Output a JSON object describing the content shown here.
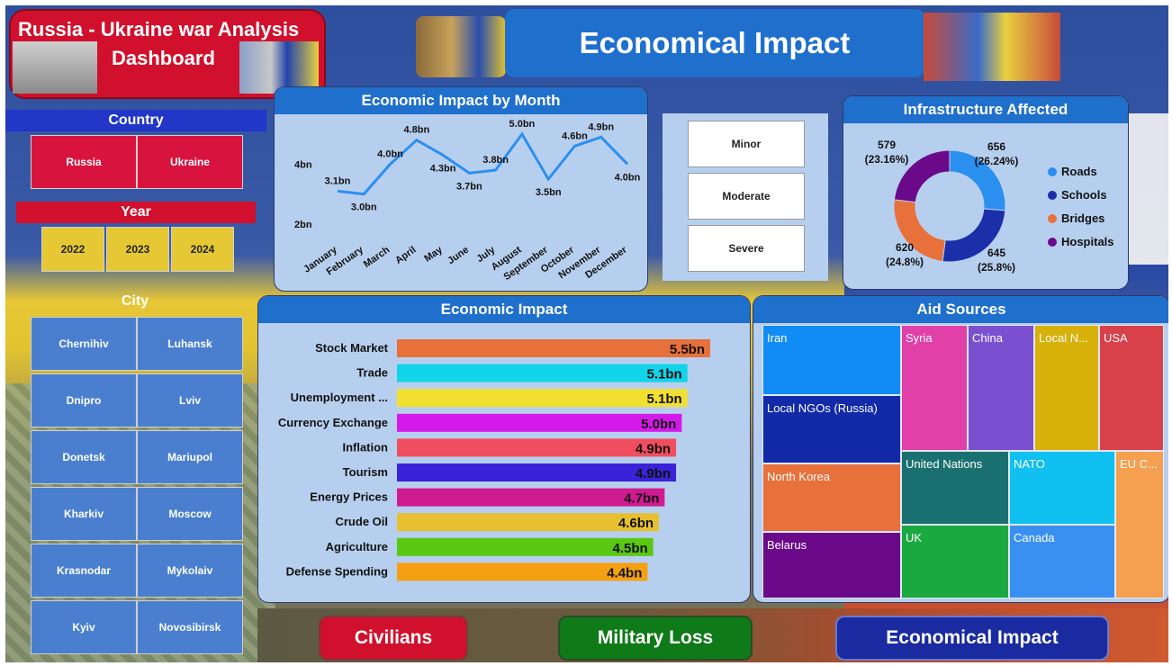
{
  "header": {
    "title_line1": "Russia - Ukraine war Analysis",
    "title_line2": "Dashboard",
    "page_title": "Economical Impact"
  },
  "slicers": {
    "country_title": "Country",
    "countries": [
      "Russia",
      "Ukraine"
    ],
    "year_title": "Year",
    "years": [
      "2022",
      "2023",
      "2024"
    ],
    "city_title": "City",
    "cities": [
      [
        "Chernihiv",
        "Luhansk"
      ],
      [
        "Dnipro",
        "Lviv"
      ],
      [
        "Donetsk",
        "Mariupol"
      ],
      [
        "Kharkiv",
        "Moscow"
      ],
      [
        "Krasnodar",
        "Mykolaiv"
      ],
      [
        "Kyiv",
        "Novosibirsk"
      ]
    ]
  },
  "severity": {
    "options": [
      "Minor",
      "Moderate",
      "Severe"
    ]
  },
  "navigation": {
    "civilians": "Civilians",
    "military": "Military Loss",
    "economical": "Economical Impact"
  },
  "colors": {
    "accent_blue": "#1f6fcc",
    "red": "#d0102c",
    "yellow": "#e6c835",
    "line": "#2b8ff0"
  },
  "chart_data": [
    {
      "type": "line",
      "title": "Economic Impact by Month",
      "categories": [
        "January",
        "February",
        "March",
        "April",
        "May",
        "June",
        "July",
        "August",
        "September",
        "October",
        "November",
        "December"
      ],
      "values": [
        3.1,
        3.0,
        4.0,
        4.8,
        4.3,
        3.7,
        3.8,
        5.0,
        3.5,
        4.6,
        4.9,
        4.0
      ],
      "data_labels": [
        "3.1bn",
        "3.0bn",
        "4.0bn",
        "4.8bn",
        "4.3bn",
        "3.7bn",
        "3.8bn",
        "5.0bn",
        "3.5bn",
        "4.6bn",
        "4.9bn",
        "4.0bn"
      ],
      "y_ticks": [
        "2bn",
        "4bn"
      ],
      "ylim": [
        2,
        5
      ]
    },
    {
      "type": "pie",
      "title": "Infrastructure Affected",
      "labels": [
        "Roads",
        "Schools",
        "Bridges",
        "Hospitals"
      ],
      "values": [
        656,
        645,
        620,
        579
      ],
      "percents": [
        "(26.24%)",
        "(25.8%)",
        "(24.8%)",
        "(23.16%)"
      ],
      "colors": [
        "#2b8ff0",
        "#1a2fa8",
        "#e8703a",
        "#6a0a8a"
      ]
    },
    {
      "type": "bar",
      "title": "Economic Impact",
      "categories": [
        "Stock Market",
        "Trade",
        "Unemployment ...",
        "Currency Exchange",
        "Inflation",
        "Tourism",
        "Energy Prices",
        "Crude Oil",
        "Agriculture",
        "Defense Spending"
      ],
      "values": [
        5.5,
        5.1,
        5.1,
        5.0,
        4.9,
        4.9,
        4.7,
        4.6,
        4.5,
        4.4
      ],
      "data_labels": [
        "5.5bn",
        "5.1bn",
        "5.1bn",
        "5.0bn",
        "4.9bn",
        "4.9bn",
        "4.7bn",
        "4.6bn",
        "4.5bn",
        "4.4bn"
      ],
      "colors": [
        "#e8703a",
        "#12d4e8",
        "#f2e030",
        "#d41ae8",
        "#f04e5e",
        "#3a22d8",
        "#d01a90",
        "#e6c030",
        "#5ac812",
        "#f5a012"
      ]
    },
    {
      "type": "treemap",
      "title": "Aid Sources",
      "labels": [
        "Iran",
        "Local NGOs (Russia)",
        "North Korea",
        "Belarus",
        "Syria",
        "China",
        "Local N...",
        "USA",
        "United Nations",
        "NATO",
        "EU C...",
        "UK",
        "Canada"
      ],
      "colors": [
        "#128cf5",
        "#122aa8",
        "#e8703a",
        "#6a0a8a",
        "#e040a8",
        "#7a50d0",
        "#d8b00a",
        "#d8404a",
        "#1a7070",
        "#10c0f0",
        "#f5a050",
        "#1aa840",
        "#3a90f0"
      ]
    }
  ]
}
